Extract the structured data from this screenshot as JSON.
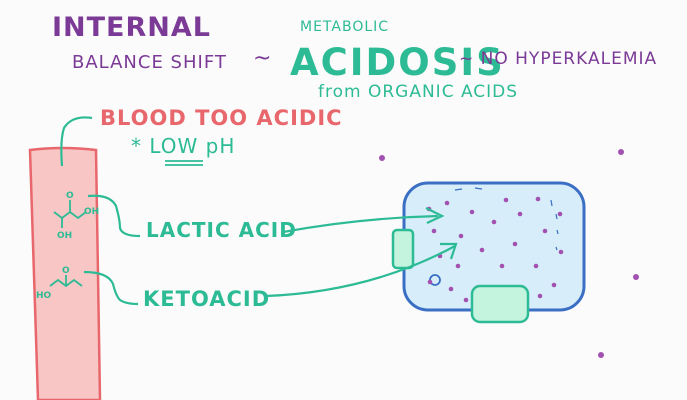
{
  "title": "INTERNAL",
  "subtitle_left": "BALANCE SHIFT",
  "tilde": "~",
  "metabolic_label": "METABOLIC",
  "acidosis_label": "ACIDOSIS",
  "right_note": "~ NO HYPERKALEMIA",
  "from_note": "from ORGANIC ACIDS",
  "blood_note": "BLOOD TOO ACIDIC",
  "ph_note": "* LOW pH",
  "lactic_label": "LACTIC ACID",
  "keto_label": "KETOACID",
  "chem": {
    "oh": "OH",
    "ho": "HO",
    "o": "O"
  },
  "colors": {
    "purple": "#7b3a96",
    "green": "#2dbb95",
    "red": "#e8676c",
    "vessel": "#f8c6c4",
    "cell_fill": "#d7eefa",
    "cell_outline": "#3a6fc4",
    "channel": "#c4f3de",
    "dot": "#a351b0"
  }
}
